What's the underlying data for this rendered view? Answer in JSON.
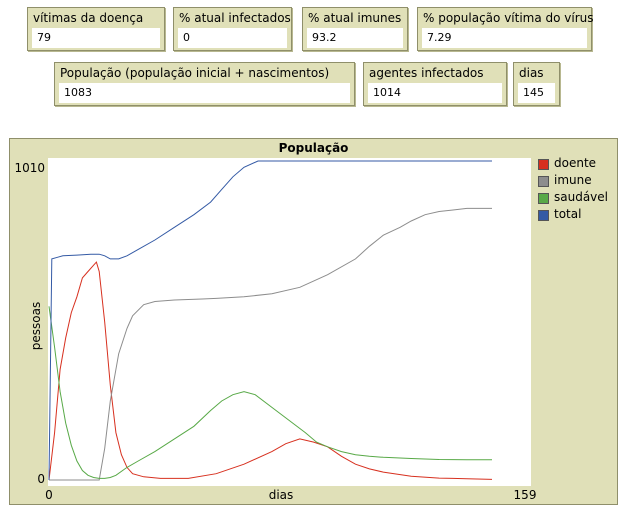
{
  "monitors": {
    "vitimas": {
      "label": "vítimas da doença",
      "value": "79"
    },
    "infectados": {
      "label": "% atual infectados",
      "value": "0"
    },
    "imunes": {
      "label": "% atual imunes",
      "value": "93.2"
    },
    "vitima_virus": {
      "label": "% população vítima do vírus",
      "value": "7.29"
    },
    "populacao": {
      "label": "População (população inicial + nascimentos)",
      "value": "1083"
    },
    "agentes": {
      "label": "agentes infectados",
      "value": "1014"
    },
    "dias": {
      "label": "dias",
      "value": "145"
    }
  },
  "plot": {
    "title": "População",
    "xlabel": "dias",
    "ylabel": "pessoas",
    "x_min_label": "0",
    "x_max_label": "159",
    "y_min_label": "0",
    "y_max_label": "1010"
  },
  "chart_data": {
    "type": "line",
    "title": "População",
    "xlabel": "dias",
    "ylabel": "pessoas",
    "xlim": [
      0,
      159
    ],
    "ylim": [
      0,
      1010
    ],
    "grid": false,
    "legend": "right",
    "series": [
      {
        "name": "doente",
        "color": "#d7301f",
        "points": [
          [
            0,
            0
          ],
          [
            2,
            150
          ],
          [
            4,
            350
          ],
          [
            6,
            450
          ],
          [
            8,
            530
          ],
          [
            10,
            580
          ],
          [
            12,
            640
          ],
          [
            14,
            660
          ],
          [
            16,
            680
          ],
          [
            17,
            690
          ],
          [
            18,
            660
          ],
          [
            20,
            500
          ],
          [
            22,
            300
          ],
          [
            24,
            150
          ],
          [
            26,
            80
          ],
          [
            28,
            40
          ],
          [
            30,
            20
          ],
          [
            34,
            10
          ],
          [
            40,
            5
          ],
          [
            50,
            5
          ],
          [
            60,
            20
          ],
          [
            70,
            50
          ],
          [
            80,
            90
          ],
          [
            85,
            115
          ],
          [
            90,
            130
          ],
          [
            95,
            120
          ],
          [
            100,
            105
          ],
          [
            105,
            75
          ],
          [
            110,
            50
          ],
          [
            115,
            35
          ],
          [
            120,
            25
          ],
          [
            130,
            12
          ],
          [
            140,
            6
          ],
          [
            145,
            5
          ],
          [
            150,
            4
          ],
          [
            159,
            2
          ]
        ]
      },
      {
        "name": "imune",
        "color": "#8d8d8d",
        "points": [
          [
            0,
            0
          ],
          [
            15,
            0
          ],
          [
            18,
            0
          ],
          [
            20,
            100
          ],
          [
            22,
            250
          ],
          [
            25,
            400
          ],
          [
            28,
            480
          ],
          [
            30,
            520
          ],
          [
            34,
            555
          ],
          [
            38,
            565
          ],
          [
            45,
            570
          ],
          [
            55,
            573
          ],
          [
            60,
            575
          ],
          [
            70,
            580
          ],
          [
            80,
            590
          ],
          [
            90,
            610
          ],
          [
            100,
            650
          ],
          [
            110,
            700
          ],
          [
            115,
            740
          ],
          [
            120,
            775
          ],
          [
            126,
            800
          ],
          [
            130,
            820
          ],
          [
            135,
            840
          ],
          [
            140,
            850
          ],
          [
            145,
            855
          ],
          [
            150,
            860
          ],
          [
            159,
            860
          ]
        ]
      },
      {
        "name": "saudável",
        "color": "#58a947",
        "points": [
          [
            0,
            550
          ],
          [
            2,
            420
          ],
          [
            4,
            280
          ],
          [
            6,
            180
          ],
          [
            8,
            110
          ],
          [
            10,
            60
          ],
          [
            12,
            30
          ],
          [
            14,
            15
          ],
          [
            16,
            8
          ],
          [
            18,
            5
          ],
          [
            20,
            5
          ],
          [
            22,
            8
          ],
          [
            24,
            15
          ],
          [
            28,
            40
          ],
          [
            32,
            60
          ],
          [
            38,
            90
          ],
          [
            45,
            130
          ],
          [
            52,
            170
          ],
          [
            58,
            220
          ],
          [
            62,
            250
          ],
          [
            66,
            270
          ],
          [
            70,
            280
          ],
          [
            74,
            270
          ],
          [
            80,
            230
          ],
          [
            86,
            190
          ],
          [
            92,
            150
          ],
          [
            96,
            120
          ],
          [
            100,
            105
          ],
          [
            105,
            90
          ],
          [
            110,
            80
          ],
          [
            115,
            75
          ],
          [
            120,
            72
          ],
          [
            130,
            68
          ],
          [
            140,
            65
          ],
          [
            150,
            64
          ],
          [
            159,
            64
          ]
        ]
      },
      {
        "name": "total",
        "color": "#345aa5",
        "points": [
          [
            0,
            0
          ],
          [
            1,
            700
          ],
          [
            3,
            705
          ],
          [
            5,
            710
          ],
          [
            10,
            712
          ],
          [
            15,
            715
          ],
          [
            18,
            715
          ],
          [
            20,
            710
          ],
          [
            22,
            700
          ],
          [
            25,
            700
          ],
          [
            28,
            710
          ],
          [
            32,
            730
          ],
          [
            38,
            760
          ],
          [
            45,
            800
          ],
          [
            52,
            840
          ],
          [
            58,
            880
          ],
          [
            62,
            920
          ],
          [
            66,
            960
          ],
          [
            70,
            990
          ],
          [
            75,
            1010
          ],
          [
            80,
            1010
          ],
          [
            100,
            1010
          ],
          [
            120,
            1010
          ],
          [
            140,
            1010
          ],
          [
            159,
            1010
          ]
        ]
      }
    ]
  }
}
